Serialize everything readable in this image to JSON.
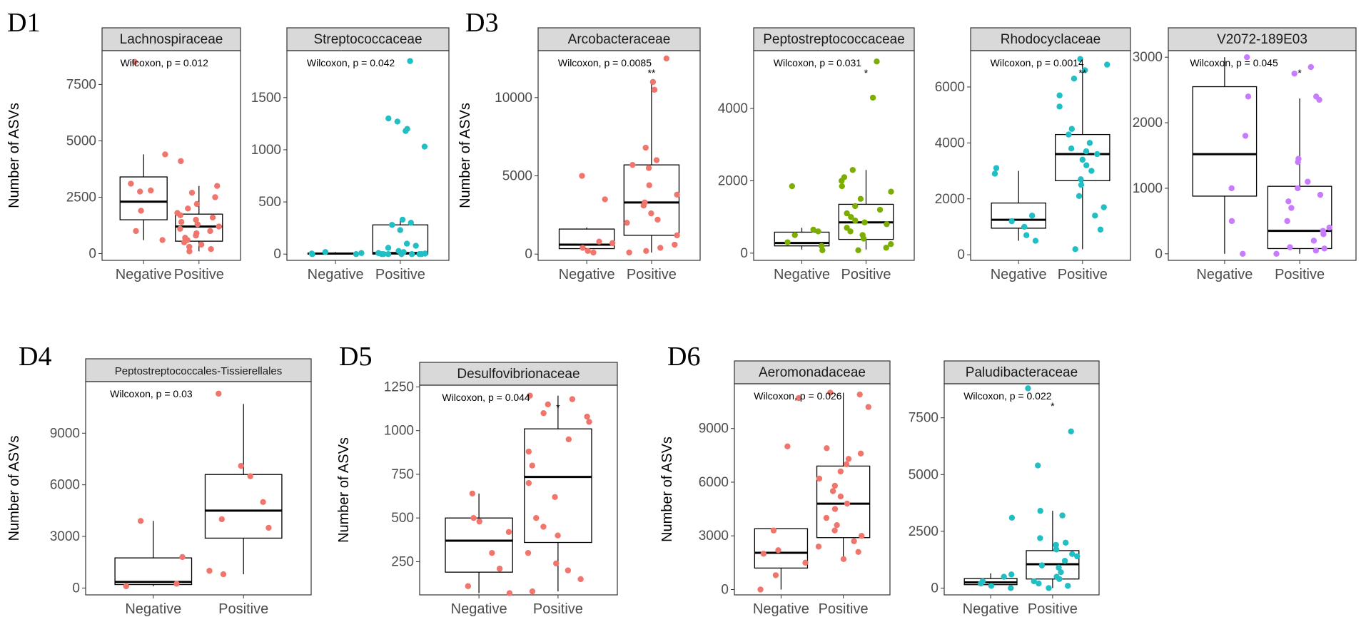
{
  "figure_labels": [
    "D1",
    "D3",
    "D4",
    "D5",
    "D6"
  ],
  "ylabel": "Number of ASVs",
  "colors": {
    "salmon": "#F0766D",
    "teal": "#1FBFC4",
    "olive": "#7CAE00",
    "purple": "#C77CFF",
    "strip_bg": "#D9D9D9",
    "box": "#000000",
    "axis": "#333333"
  },
  "chart_data": [
    {
      "type": "box",
      "title": "Lachnospiraceae",
      "xlabel": "",
      "ylabel": "Number of ASVs",
      "categories": [
        "Negative",
        "Positive"
      ],
      "ylim": [
        -300,
        9000
      ],
      "yticks": [
        0,
        2500,
        5000,
        7500
      ],
      "yticklabels": [
        "0",
        "2500",
        "5000",
        "7500"
      ],
      "point_color": "salmon",
      "annotation": "Wilcoxon, p = 0.012",
      "sig": "",
      "boxes": [
        {
          "q1": 1500,
          "median": 2300,
          "q3": 3400,
          "whisker_low": 600,
          "whisker_high": 4400
        },
        {
          "q1": 550,
          "median": 1200,
          "q3": 1750,
          "whisker_low": 100,
          "whisker_high": 3000
        }
      ],
      "points": [
        [
          600,
          1000,
          1900,
          2800,
          2750,
          4400,
          3100,
          8500
        ],
        [
          100,
          200,
          300,
          400,
          500,
          600,
          700,
          800,
          900,
          1000,
          1100,
          1200,
          1300,
          1400,
          1500,
          1600,
          1700,
          1800,
          2000,
          2200,
          2500,
          2700,
          3000,
          4100
        ]
      ]
    },
    {
      "type": "box",
      "title": "Streptococcaceae",
      "xlabel": "",
      "ylabel": "",
      "categories": [
        "Negative",
        "Positive"
      ],
      "ylim": [
        -60,
        1950
      ],
      "yticks": [
        0,
        500,
        1000,
        1500
      ],
      "yticklabels": [
        "0",
        "500",
        "1000",
        "1500"
      ],
      "point_color": "teal",
      "annotation": "Wilcoxon, p = 0.042",
      "sig": "",
      "boxes": [
        {
          "q1": 0,
          "median": 5,
          "q3": 10,
          "whisker_low": 0,
          "whisker_high": 20
        },
        {
          "q1": 0,
          "median": 10,
          "q3": 280,
          "whisker_low": 0,
          "whisker_high": 330
        }
      ],
      "points": [
        [
          0,
          0,
          5,
          10,
          20
        ],
        [
          0,
          0,
          0,
          0,
          0,
          0,
          0,
          5,
          10,
          20,
          30,
          60,
          80,
          100,
          230,
          280,
          300,
          330,
          1030,
          1180,
          1200,
          1270,
          1300,
          1850
        ]
      ]
    },
    {
      "type": "box",
      "title": "Arcobacteraceae",
      "xlabel": "",
      "ylabel": "Number of ASVs",
      "categories": [
        "Negative",
        "Positive"
      ],
      "ylim": [
        -400,
        13000
      ],
      "yticks": [
        0,
        5000,
        10000
      ],
      "yticklabels": [
        "0",
        "5000",
        "10000"
      ],
      "point_color": "salmon",
      "annotation": "Wilcoxon, p = 0.0085",
      "sig": "**",
      "boxes": [
        {
          "q1": 350,
          "median": 600,
          "q3": 1600,
          "whisker_low": 100,
          "whisker_high": 1700
        },
        {
          "q1": 1200,
          "median": 3300,
          "q3": 5700,
          "whisker_low": 100,
          "whisker_high": 11000
        }
      ],
      "points": [
        [
          100,
          200,
          400,
          700,
          800,
          3500,
          5000
        ],
        [
          100,
          200,
          400,
          600,
          1200,
          2000,
          2200,
          2600,
          3100,
          3300,
          3800,
          4400,
          5500,
          5700,
          6000,
          6800,
          10500,
          11000,
          12500
        ]
      ]
    },
    {
      "type": "box",
      "title": "Peptostreptococcaceae",
      "xlabel": "",
      "ylabel": "",
      "categories": [
        "Negative",
        "Positive"
      ],
      "ylim": [
        -200,
        5600
      ],
      "yticks": [
        0,
        2000,
        4000
      ],
      "yticklabels": [
        "0",
        "2000",
        "4000"
      ],
      "point_color": "olive",
      "annotation": "Wilcoxon, p = 0.031",
      "sig": "*",
      "boxes": [
        {
          "q1": 200,
          "median": 280,
          "q3": 580,
          "whisker_low": 100,
          "whisker_high": 700
        },
        {
          "q1": 380,
          "median": 850,
          "q3": 1350,
          "whisker_low": 100,
          "whisker_high": 2300
        }
      ],
      "points": [
        [
          80,
          200,
          300,
          500,
          600,
          650,
          1850
        ],
        [
          80,
          150,
          250,
          400,
          500,
          600,
          700,
          800,
          850,
          900,
          1000,
          1100,
          1200,
          1300,
          1500,
          1700,
          1850,
          2000,
          2100,
          2300,
          4300,
          5300
        ]
      ]
    },
    {
      "type": "box",
      "title": "Rhodocyclaceae",
      "xlabel": "",
      "ylabel": "",
      "categories": [
        "Negative",
        "Positive"
      ],
      "ylim": [
        -200,
        7300
      ],
      "yticks": [
        0,
        2000,
        4000,
        6000
      ],
      "yticklabels": [
        "0",
        "2000",
        "4000",
        "6000"
      ],
      "point_color": "teal",
      "annotation": "Wilcoxon, p = 0.0014",
      "sig": "**",
      "boxes": [
        {
          "q1": 950,
          "median": 1250,
          "q3": 1850,
          "whisker_low": 500,
          "whisker_high": 3000
        },
        {
          "q1": 2650,
          "median": 3600,
          "q3": 4300,
          "whisker_low": 200,
          "whisker_high": 6800
        }
      ],
      "points": [
        [
          500,
          700,
          1000,
          1200,
          1400,
          2900,
          3100
        ],
        [
          200,
          900,
          1400,
          1700,
          2100,
          2500,
          2700,
          3000,
          3200,
          3400,
          3600,
          3700,
          3800,
          4000,
          4300,
          4500,
          5300,
          5700,
          6300,
          6600,
          6800,
          7000
        ]
      ]
    },
    {
      "type": "box",
      "title": "V2072-189E03",
      "xlabel": "",
      "ylabel": "",
      "categories": [
        "Negative",
        "Positive"
      ],
      "ylim": [
        -100,
        3100
      ],
      "yticks": [
        0,
        1000,
        2000,
        3000
      ],
      "yticklabels": [
        "0",
        "1000",
        "2000",
        "3000"
      ],
      "point_color": "purple",
      "annotation": "Wilcoxon, p = 0.045",
      "sig": "*",
      "boxes": [
        {
          "q1": 880,
          "median": 1520,
          "q3": 2550,
          "whisker_low": 0,
          "whisker_high": 3000
        },
        {
          "q1": 80,
          "median": 350,
          "q3": 1030,
          "whisker_low": 0,
          "whisker_high": 2370
        }
      ],
      "points": [
        [
          0,
          500,
          1000,
          1800,
          2400,
          3000
        ],
        [
          0,
          50,
          80,
          100,
          200,
          300,
          350,
          400,
          500,
          700,
          800,
          900,
          1000,
          1100,
          1400,
          1450,
          2350,
          2400,
          2750,
          2850
        ]
      ]
    },
    {
      "type": "box",
      "title": "Peptostreptococcales-Tissierellales",
      "xlabel": "",
      "ylabel": "Number of ASVs",
      "categories": [
        "Negative",
        "Positive"
      ],
      "ylim": [
        -400,
        12000
      ],
      "yticks": [
        0,
        3000,
        6000,
        9000
      ],
      "yticklabels": [
        "0",
        "3000",
        "6000",
        "9000"
      ],
      "point_color": "salmon",
      "annotation": "Wilcoxon, p = 0.03",
      "sig": "",
      "boxes": [
        {
          "q1": 200,
          "median": 350,
          "q3": 1750,
          "whisker_low": 100,
          "whisker_high": 3900
        },
        {
          "q1": 2900,
          "median": 4500,
          "q3": 6600,
          "whisker_low": 800,
          "whisker_high": 10700
        }
      ],
      "points": [
        [
          100,
          250,
          1800,
          3900
        ],
        [
          800,
          1000,
          3500,
          4000,
          5000,
          6500,
          7100,
          11300
        ]
      ]
    },
    {
      "type": "box",
      "title": "Desulfovibrionaceae",
      "xlabel": "",
      "ylabel": "Number of ASVs",
      "categories": [
        "Negative",
        "Positive"
      ],
      "ylim": [
        60,
        1260
      ],
      "yticks": [
        250,
        500,
        750,
        1000,
        1250
      ],
      "yticklabels": [
        "250",
        "500",
        "750",
        "1000",
        "1250"
      ],
      "point_color": "salmon",
      "annotation": "Wilcoxon, p = 0.044",
      "sig": "*",
      "boxes": [
        {
          "q1": 190,
          "median": 370,
          "q3": 500,
          "whisker_low": 70,
          "whisker_high": 640
        },
        {
          "q1": 360,
          "median": 735,
          "q3": 1010,
          "whisker_low": 80,
          "whisker_high": 1200
        }
      ],
      "points": [
        [
          70,
          110,
          210,
          300,
          420,
          480,
          500,
          640
        ],
        [
          80,
          150,
          200,
          240,
          300,
          400,
          450,
          500,
          620,
          700,
          800,
          880,
          950,
          1050,
          1080,
          1100,
          1150,
          1180,
          1200
        ]
      ]
    },
    {
      "type": "box",
      "title": "Aeromonadaceae",
      "xlabel": "",
      "ylabel": "Number of ASVs",
      "categories": [
        "Negative",
        "Positive"
      ],
      "ylim": [
        -300,
        11500
      ],
      "yticks": [
        0,
        3000,
        6000,
        9000
      ],
      "yticklabels": [
        "0",
        "3000",
        "6000",
        "9000"
      ],
      "point_color": "salmon",
      "annotation": "Wilcoxon, p = 0.026",
      "sig": "",
      "boxes": [
        {
          "q1": 1200,
          "median": 2050,
          "q3": 3400,
          "whisker_low": 0,
          "whisker_high": 3400
        },
        {
          "q1": 2900,
          "median": 4800,
          "q3": 6900,
          "whisker_low": 1700,
          "whisker_high": 11000
        }
      ],
      "points": [
        [
          0,
          800,
          1500,
          2000,
          2200,
          3300,
          8000,
          10700
        ],
        [
          1700,
          2100,
          2400,
          2700,
          3000,
          3300,
          3600,
          4000,
          4500,
          4800,
          5200,
          5500,
          5800,
          6200,
          6600,
          7000,
          7300,
          7600,
          7900,
          10200,
          10900,
          11000
        ]
      ]
    },
    {
      "type": "box",
      "title": "Paludibacteraceae",
      "xlabel": "",
      "ylabel": "",
      "categories": [
        "Negative",
        "Positive"
      ],
      "ylim": [
        -300,
        9000
      ],
      "yticks": [
        0,
        2500,
        5000,
        7500
      ],
      "yticklabels": [
        "0",
        "2500",
        "5000",
        "7500"
      ],
      "point_color": "teal",
      "annotation": "Wilcoxon, p = 0.022",
      "sig": "*",
      "boxes": [
        {
          "q1": 150,
          "median": 250,
          "q3": 420,
          "whisker_low": 0,
          "whisker_high": 650
        },
        {
          "q1": 400,
          "median": 1050,
          "q3": 1650,
          "whisker_low": 0,
          "whisker_high": 3400
        }
      ],
      "points": [
        [
          0,
          100,
          200,
          300,
          500,
          600,
          3100
        ],
        [
          0,
          100,
          200,
          300,
          400,
          500,
          700,
          900,
          1000,
          1200,
          1400,
          1500,
          1700,
          1900,
          2000,
          2200,
          3200,
          3400,
          5400,
          6900,
          8800
        ]
      ]
    }
  ]
}
